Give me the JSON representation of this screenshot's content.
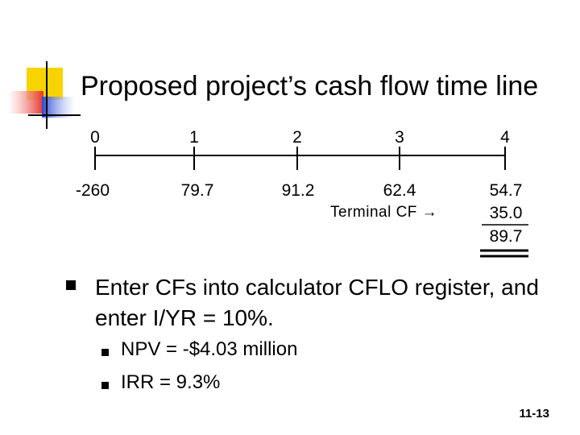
{
  "slide": {
    "title": "Proposed project’s cash flow time line",
    "periods": [
      "0",
      "1",
      "2",
      "3",
      "4"
    ],
    "cash_flows": [
      "-260",
      "79.7",
      "91.2",
      "62.4",
      "54.7"
    ],
    "terminal_label": "Terminal CF →",
    "terminal_value": "35.0",
    "total_value": "89.7",
    "bullet_main": "Enter CFs into calculator CFLO register, and enter I/YR = 10%.",
    "sub_bullets": [
      "NPV = -$4.03 million",
      "IRR = 9.3%"
    ],
    "page_number": "11-13"
  },
  "colors": {
    "logo_yellow": "#f7d400",
    "logo_red": "#e8322c",
    "logo_blue": "#2a4bd6",
    "text": "#000000"
  }
}
